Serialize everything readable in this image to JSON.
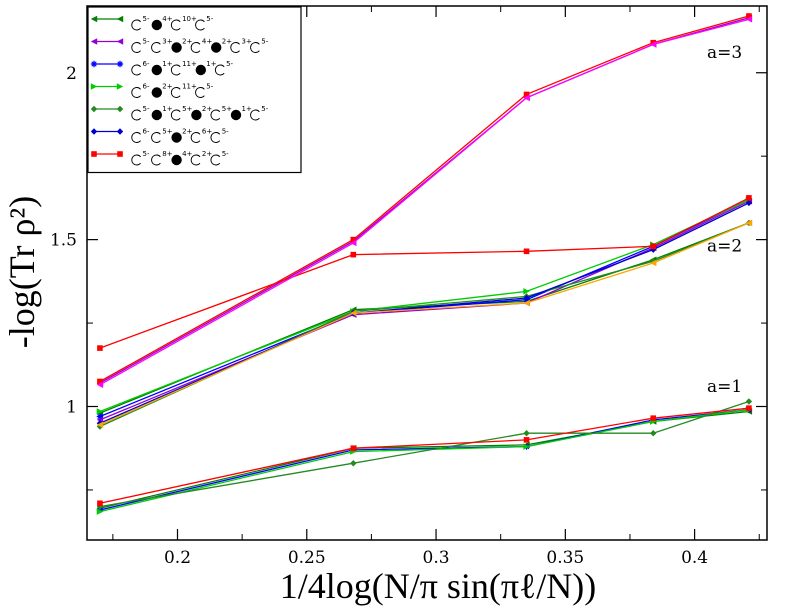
{
  "chart_data": {
    "type": "line",
    "title": "",
    "xlabel": "1/4log(N/π sin(πℓ/N))",
    "ylabel": "-log(Tr ρ²)",
    "xlim": [
      0.165,
      0.428
    ],
    "ylim": [
      0.6,
      2.2
    ],
    "xticks": [
      0.2,
      0.25,
      0.3,
      0.35,
      0.4
    ],
    "xtick_labels": [
      "0.2",
      "0.25",
      "0.3",
      "0.35",
      "0.4"
    ],
    "yticks": [
      1.0,
      1.5,
      2.0
    ],
    "ytick_labels": [
      "1",
      "1.5",
      "2"
    ],
    "grid": false,
    "legend_position": "top-left",
    "annotations": [
      {
        "text": "a=3",
        "x": 0.4,
        "y": 2.05
      },
      {
        "text": "a=2",
        "x": 0.4,
        "y": 1.47
      },
      {
        "text": "a=1",
        "x": 0.4,
        "y": 1.05
      }
    ],
    "series": [
      {
        "name": "○⁵⁻●⁴⁺○¹⁰⁺○⁵⁻",
        "legend": [
          {
            "k": "o",
            "s": "5-"
          },
          {
            "k": "f",
            "s": "4+"
          },
          {
            "k": "o",
            "s": "10+"
          },
          {
            "k": "o",
            "s": "5-"
          }
        ],
        "color": "#008000",
        "marker": "triangle-left",
        "groups": [
          {
            "a": 1,
            "x": [
              0.17,
              0.268,
              0.335,
              0.384,
              0.421
            ],
            "y": [
              0.695,
              0.875,
              0.885,
              0.955,
              0.985
            ]
          },
          {
            "a": 2,
            "x": [
              0.17,
              0.268,
              0.335,
              0.384,
              0.421
            ],
            "y": [
              0.98,
              1.29,
              1.315,
              1.44,
              1.55
            ]
          }
        ]
      },
      {
        "name": "○⁵⁻○³⁺●²⁺○⁴⁺●²⁺○³⁺○⁵⁻",
        "legend": [
          {
            "k": "o",
            "s": "5-"
          },
          {
            "k": "o",
            "s": "3+"
          },
          {
            "k": "f",
            "s": "2+"
          },
          {
            "k": "o",
            "s": "4+"
          },
          {
            "k": "f",
            "s": "2+"
          },
          {
            "k": "o",
            "s": "3+"
          },
          {
            "k": "o",
            "s": "5-"
          }
        ],
        "color": "#9400d3",
        "marker": "triangle-left",
        "groups": [
          {
            "a": 2,
            "x": [
              0.17,
              0.268,
              0.335,
              0.384,
              0.421
            ],
            "y": [
              0.96,
              1.275,
              1.31,
              1.475,
              1.615
            ]
          },
          {
            "a": 3,
            "x": [
              0.17,
              0.268,
              0.335,
              0.384,
              0.421
            ],
            "y": [
              1.07,
              1.495,
              1.925,
              2.085,
              2.165
            ]
          }
        ]
      },
      {
        "name": "○⁶⁻●¹⁺○¹¹⁺●¹⁺○⁵⁻",
        "legend": [
          {
            "k": "o",
            "s": "6-"
          },
          {
            "k": "f",
            "s": "1+"
          },
          {
            "k": "o",
            "s": "11+"
          },
          {
            "k": "f",
            "s": "1+"
          },
          {
            "k": "o",
            "s": "5-"
          }
        ],
        "color": "#0000ff",
        "marker": "star",
        "groups": [
          {
            "a": 1,
            "x": [
              0.17,
              0.268,
              0.335,
              0.384,
              0.421
            ],
            "y": [
              0.69,
              0.87,
              0.88,
              0.96,
              0.99
            ]
          },
          {
            "a": 2,
            "x": [
              0.17,
              0.268,
              0.335,
              0.384,
              0.421
            ],
            "y": [
              0.97,
              1.28,
              1.32,
              1.48,
              1.62
            ]
          }
        ]
      },
      {
        "name": "○⁶⁻●²⁺○¹¹⁺○⁵⁻",
        "legend": [
          {
            "k": "o",
            "s": "6-"
          },
          {
            "k": "f",
            "s": "2+"
          },
          {
            "k": "o",
            "s": "11+"
          },
          {
            "k": "o",
            "s": "5-"
          }
        ],
        "color": "#00cc00",
        "marker": "triangle-right",
        "groups": [
          {
            "a": 1,
            "x": [
              0.17,
              0.268,
              0.335,
              0.384,
              0.421
            ],
            "y": [
              0.685,
              0.865,
              0.88,
              0.955,
              0.99
            ]
          },
          {
            "a": 2,
            "x": [
              0.17,
              0.268,
              0.335,
              0.384,
              0.421
            ],
            "y": [
              0.985,
              1.285,
              1.345,
              1.485,
              1.62
            ]
          }
        ]
      },
      {
        "name": "○⁵⁻●¹⁺○⁵⁺●²⁺○⁵⁺●¹⁺○⁵⁻",
        "legend": [
          {
            "k": "o",
            "s": "5-"
          },
          {
            "k": "f",
            "s": "1+"
          },
          {
            "k": "o",
            "s": "5+"
          },
          {
            "k": "f",
            "s": "2+"
          },
          {
            "k": "o",
            "s": "5+"
          },
          {
            "k": "f",
            "s": "1+"
          },
          {
            "k": "o",
            "s": "5-"
          }
        ],
        "color": "#228b22",
        "marker": "diamond",
        "groups": [
          {
            "a": 1,
            "x": [
              0.17,
              0.268,
              0.335,
              0.384,
              0.421
            ],
            "y": [
              0.7,
              0.83,
              0.92,
              0.92,
              1.015
            ]
          },
          {
            "a": 2,
            "x": [
              0.17,
              0.268,
              0.335,
              0.384,
              0.421
            ],
            "y": [
              0.94,
              1.285,
              1.33,
              1.435,
              1.55
            ]
          }
        ]
      },
      {
        "name": "○⁶⁻○⁵⁺●²⁺○⁶⁺○⁵⁻",
        "legend": [
          {
            "k": "o",
            "s": "6-"
          },
          {
            "k": "o",
            "s": "5+"
          },
          {
            "k": "f",
            "s": "2+"
          },
          {
            "k": "o",
            "s": "6+"
          },
          {
            "k": "o",
            "s": "5-"
          }
        ],
        "color": "#0000cd",
        "marker": "diamond",
        "groups": [
          {
            "a": 2,
            "x": [
              0.17,
              0.268,
              0.335,
              0.384,
              0.421
            ],
            "y": [
              0.95,
              1.28,
              1.325,
              1.47,
              1.61
            ]
          }
        ]
      },
      {
        "name": "○⁵⁻○⁸⁺●⁴⁺○²⁺○⁵⁻",
        "legend": [
          {
            "k": "o",
            "s": "5-"
          },
          {
            "k": "o",
            "s": "8+"
          },
          {
            "k": "f",
            "s": "4+"
          },
          {
            "k": "o",
            "s": "2+"
          },
          {
            "k": "o",
            "s": "5-"
          }
        ],
        "color": "#ff0000",
        "marker": "square",
        "groups": [
          {
            "a": 1,
            "x": [
              0.17,
              0.268,
              0.335,
              0.384,
              0.421
            ],
            "y": [
              0.71,
              0.875,
              0.9,
              0.965,
              0.995
            ]
          },
          {
            "a": 2,
            "x": [
              0.17,
              0.268,
              0.335,
              0.384,
              0.421
            ],
            "y": [
              1.175,
              1.455,
              1.465,
              1.48,
              1.625
            ]
          },
          {
            "a": 3,
            "x": [
              0.17,
              0.268,
              0.335,
              0.384,
              0.421
            ],
            "y": [
              1.075,
              1.5,
              1.935,
              2.09,
              2.17
            ]
          }
        ]
      },
      {
        "name": "",
        "legend": [],
        "color": "#ffa500",
        "marker": "triangle-left",
        "groups": [
          {
            "a": 2,
            "x": [
              0.17,
              0.268,
              0.335,
              0.384,
              0.421
            ],
            "y": [
              0.945,
              1.28,
              1.31,
              1.43,
              1.55
            ]
          }
        ]
      },
      {
        "name": "",
        "legend": [],
        "color": "#ff00ff",
        "marker": "triangle-left",
        "groups": [
          {
            "a": 3,
            "x": [
              0.17,
              0.268,
              0.335,
              0.384,
              0.421
            ],
            "y": [
              1.065,
              1.49,
              1.925,
              2.085,
              2.16
            ]
          }
        ]
      }
    ]
  }
}
